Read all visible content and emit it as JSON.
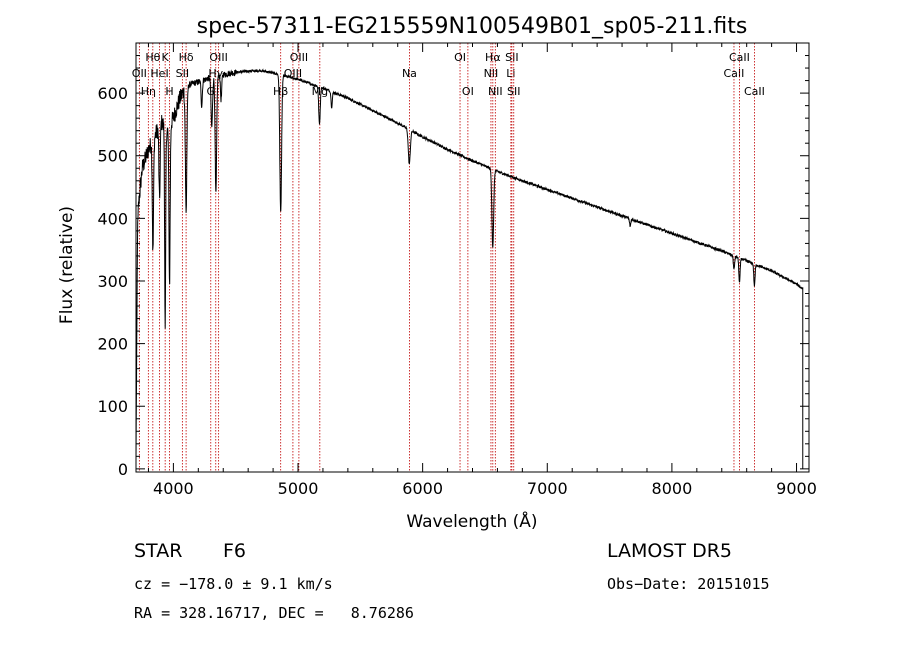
{
  "chart_data": {
    "type": "line",
    "title": "spec-57311-EG215559N100549B01_sp05-211.fits",
    "xlabel": "Wavelength (Å)",
    "ylabel": "Flux (relative)",
    "xlim": [
      3700,
      9100
    ],
    "ylim": [
      -5,
      680
    ],
    "xticks": [
      4000,
      5000,
      6000,
      7000,
      8000,
      9000
    ],
    "yticks": [
      0,
      100,
      200,
      300,
      400,
      500,
      600
    ],
    "grid": false,
    "series": [
      {
        "continuum": {
          "x": [
            3700,
            3720,
            3750,
            3800,
            3850,
            3900,
            3950,
            4000,
            4050,
            4100,
            4150,
            4200,
            4300,
            4400,
            4500,
            4600,
            4700,
            4800,
            4900,
            5000,
            5200,
            5400,
            5600,
            5800,
            6000,
            6200,
            6400,
            6600,
            6800,
            7000,
            7200,
            7400,
            7600,
            7800,
            8000,
            8200,
            8400,
            8600,
            8800,
            9000,
            9100
          ],
          "y": [
            300,
            420,
            480,
            510,
            530,
            555,
            540,
            560,
            590,
            610,
            615,
            618,
            625,
            630,
            633,
            635,
            636,
            632,
            627,
            622,
            608,
            592,
            572,
            552,
            530,
            510,
            492,
            475,
            460,
            446,
            432,
            418,
            404,
            390,
            376,
            362,
            348,
            332,
            316,
            295,
            280
          ]
        },
        "absorption_lines": [
          {
            "x": 3836,
            "depth": 180,
            "width": 5
          },
          {
            "x": 3889,
            "depth": 120,
            "width": 5
          },
          {
            "x": 3934,
            "depth": 330,
            "width": 4
          },
          {
            "x": 3969,
            "depth": 250,
            "width": 5
          },
          {
            "x": 4102,
            "depth": 200,
            "width": 6
          },
          {
            "x": 4227,
            "depth": 40,
            "width": 5
          },
          {
            "x": 4308,
            "depth": 80,
            "width": 6
          },
          {
            "x": 4341,
            "depth": 190,
            "width": 6
          },
          {
            "x": 4383,
            "depth": 40,
            "width": 5
          },
          {
            "x": 4861,
            "depth": 220,
            "width": 7
          },
          {
            "x": 5172,
            "depth": 60,
            "width": 6
          },
          {
            "x": 5270,
            "depth": 25,
            "width": 5
          },
          {
            "x": 5893,
            "depth": 55,
            "width": 8
          },
          {
            "x": 6563,
            "depth": 125,
            "width": 7
          },
          {
            "x": 7665,
            "depth": 12,
            "width": 5
          },
          {
            "x": 8498,
            "depth": 22,
            "width": 5
          },
          {
            "x": 8542,
            "depth": 40,
            "width": 5
          },
          {
            "x": 8662,
            "depth": 35,
            "width": 5
          }
        ]
      }
    ],
    "line_markers": [
      {
        "x": 3727,
        "label": "OII",
        "row": 1
      },
      {
        "x": 3799,
        "label": "Hη",
        "row": 2
      },
      {
        "x": 3835,
        "label": "Hθ",
        "row": 0
      },
      {
        "x": 3889,
        "label": "HeI",
        "row": 1
      },
      {
        "x": 3934,
        "label": "K",
        "row": 0
      },
      {
        "x": 3969,
        "label": "H",
        "row": 2
      },
      {
        "x": 4072,
        "label": "SII",
        "row": 1
      },
      {
        "x": 4102,
        "label": "Hδ",
        "row": 0
      },
      {
        "x": 4300,
        "label": "G",
        "row": 2
      },
      {
        "x": 4340,
        "label": "Hγ",
        "row": 1
      },
      {
        "x": 4363,
        "label": "OIII",
        "row": 0
      },
      {
        "x": 4861,
        "label": "Hβ",
        "row": 2
      },
      {
        "x": 4959,
        "label": "OIII",
        "row": 1
      },
      {
        "x": 5007,
        "label": "OIII",
        "row": 0
      },
      {
        "x": 5175,
        "label": "Mg",
        "row": 2
      },
      {
        "x": 5894,
        "label": "Na",
        "row": 1
      },
      {
        "x": 6300,
        "label": "OI",
        "row": 0
      },
      {
        "x": 6363,
        "label": "OI",
        "row": 2
      },
      {
        "x": 6548,
        "label": "NII",
        "row": 1
      },
      {
        "x": 6563,
        "label": "Hα",
        "row": 0
      },
      {
        "x": 6583,
        "label": "NII",
        "row": 2
      },
      {
        "x": 6708,
        "label": "Li",
        "row": 1
      },
      {
        "x": 6716,
        "label": "SII",
        "row": 0
      },
      {
        "x": 6731,
        "label": "SII",
        "row": 2
      },
      {
        "x": 8498,
        "label": "CaII",
        "row": 1
      },
      {
        "x": 8542,
        "label": "CaII",
        "row": 0
      },
      {
        "x": 8662,
        "label": "CaII",
        "row": 2
      }
    ]
  },
  "info": {
    "class_label": "STAR",
    "subclass": "F6",
    "survey": "LAMOST DR5",
    "cz": "cz = −178.0 ± 9.1 km/s",
    "obs_date": "Obs−Date: 20151015",
    "coords": "RA = 328.16717, DEC =   8.76286"
  },
  "colors": {
    "spectrum": "#000000",
    "marker_line": "#c00000",
    "axes": "#000000"
  }
}
